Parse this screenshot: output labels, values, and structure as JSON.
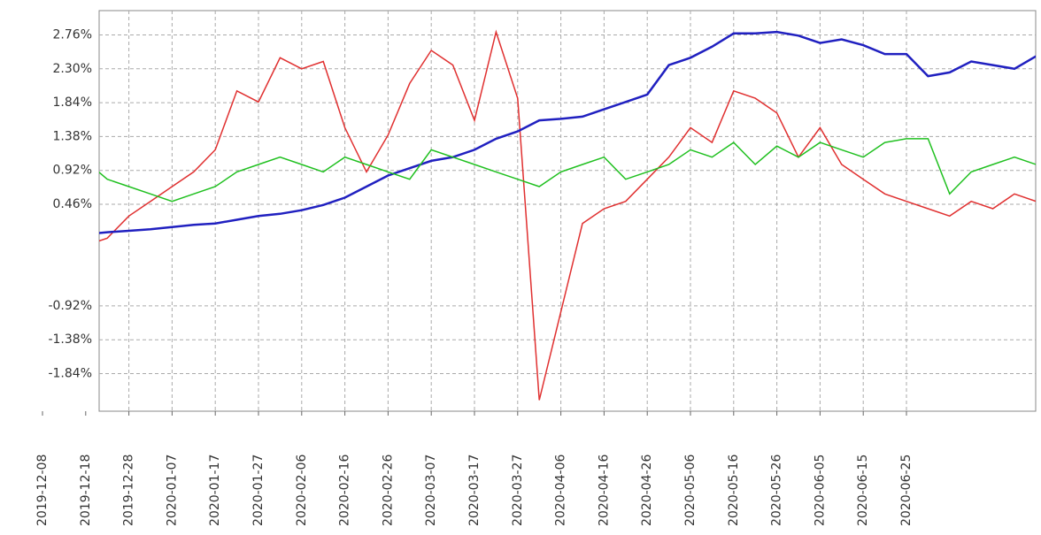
{
  "chart_data": {
    "type": "line",
    "categories": [
      "2019-12-08",
      null,
      "2019-12-18",
      null,
      "2019-12-28",
      null,
      "2020-01-07",
      null,
      "2020-01-17",
      null,
      "2020-01-27",
      null,
      "2020-02-06",
      null,
      "2020-02-16",
      null,
      "2020-02-26",
      null,
      "2020-03-07",
      null,
      "2020-03-17",
      null,
      "2020-03-27",
      null,
      "2020-04-06",
      null,
      "2020-04-16",
      null,
      "2020-04-26",
      null,
      "2020-05-06",
      null,
      "2020-05-16",
      null,
      "2020-05-26",
      null,
      "2020-06-05",
      null,
      "2020-06-15",
      null,
      "2020-06-25",
      null,
      null,
      null,
      null,
      null,
      null
    ],
    "series": [
      {
        "color": "#e03030",
        "values": [
          0.2,
          0.1,
          -0.1,
          0.0,
          0.3,
          0.5,
          0.7,
          0.9,
          1.2,
          2.0,
          1.85,
          2.45,
          2.3,
          2.4,
          1.5,
          0.9,
          1.4,
          2.1,
          2.55,
          2.35,
          1.6,
          2.8,
          1.9,
          -2.2,
          -1.0,
          0.2,
          0.4,
          0.5,
          0.8,
          1.1,
          1.5,
          1.3,
          2.0,
          1.9,
          1.7,
          1.1,
          1.5,
          1.0,
          0.8,
          0.6,
          0.5,
          0.4,
          0.3,
          0.5,
          0.4,
          0.6,
          0.5
        ]
      },
      {
        "color": "#2020c0",
        "values": [
          0.0,
          0.02,
          0.05,
          0.08,
          0.1,
          0.12,
          0.15,
          0.18,
          0.2,
          0.25,
          0.3,
          0.33,
          0.38,
          0.45,
          0.55,
          0.7,
          0.85,
          0.95,
          1.05,
          1.1,
          1.2,
          1.35,
          1.45,
          1.6,
          1.62,
          1.65,
          1.75,
          1.85,
          1.95,
          2.35,
          2.45,
          2.6,
          2.78,
          2.78,
          2.8,
          2.75,
          2.65,
          2.7,
          2.62,
          2.5,
          2.5,
          2.2,
          2.25,
          2.4,
          2.35,
          2.3,
          2.47
        ]
      },
      {
        "color": "#20c020",
        "values": [
          1.0,
          0.9,
          1.05,
          0.8,
          0.7,
          0.6,
          0.5,
          0.6,
          0.7,
          0.9,
          1.0,
          1.1,
          1.0,
          0.9,
          1.1,
          1.0,
          0.9,
          0.8,
          1.2,
          1.1,
          1.0,
          0.9,
          0.8,
          0.7,
          0.9,
          1.0,
          1.1,
          0.8,
          0.9,
          1.0,
          1.2,
          1.1,
          1.3,
          1.0,
          1.25,
          1.1,
          1.3,
          1.2,
          1.1,
          1.3,
          1.35,
          1.35,
          0.6,
          0.9,
          1.0,
          1.1,
          1.0
        ]
      }
    ],
    "ylim": [
      -2.35,
      3.09
    ],
    "yticks": [
      {
        "value": 2.76,
        "label": "2.76%"
      },
      {
        "value": 2.3,
        "label": "2.30%"
      },
      {
        "value": 1.84,
        "label": "1.84%"
      },
      {
        "value": 1.38,
        "label": "1.38%"
      },
      {
        "value": 0.92,
        "label": "0.92%"
      },
      {
        "value": 0.46,
        "label": "0.46%"
      },
      {
        "value": -0.92,
        "label": "-0.92%"
      },
      {
        "value": -1.38,
        "label": "-1.38%"
      },
      {
        "value": -1.84,
        "label": "-1.84%"
      }
    ],
    "grid": true
  }
}
